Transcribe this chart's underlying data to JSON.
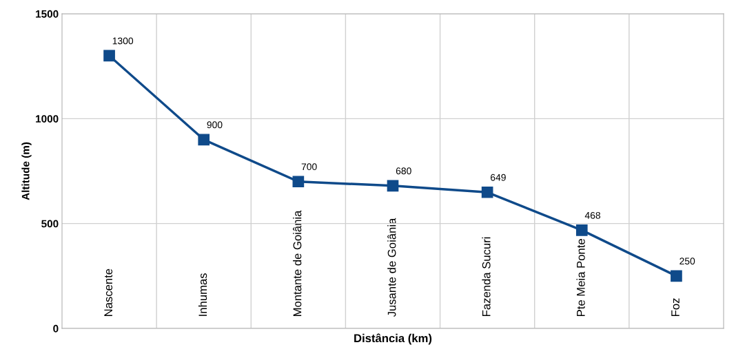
{
  "chart_data": {
    "type": "line",
    "xlabel": "Distância (km)",
    "ylabel": "Altitude (m)",
    "categories": [
      "Nascente",
      "Inhumas",
      "Montante de Goiânia",
      "Jusante de Goiânia",
      "Fazenda Sucuri",
      "Pte Meia Ponte",
      "Foz"
    ],
    "series": [
      {
        "color": "#0f4a8a",
        "values": [
          1300,
          900,
          700,
          680,
          649,
          468,
          250
        ]
      }
    ],
    "ylim": [
      0,
      1500
    ],
    "yticks": [
      0,
      500,
      1000,
      1500
    ],
    "grid": true,
    "data_labels": true,
    "marker": "square",
    "line_style": "solid"
  }
}
